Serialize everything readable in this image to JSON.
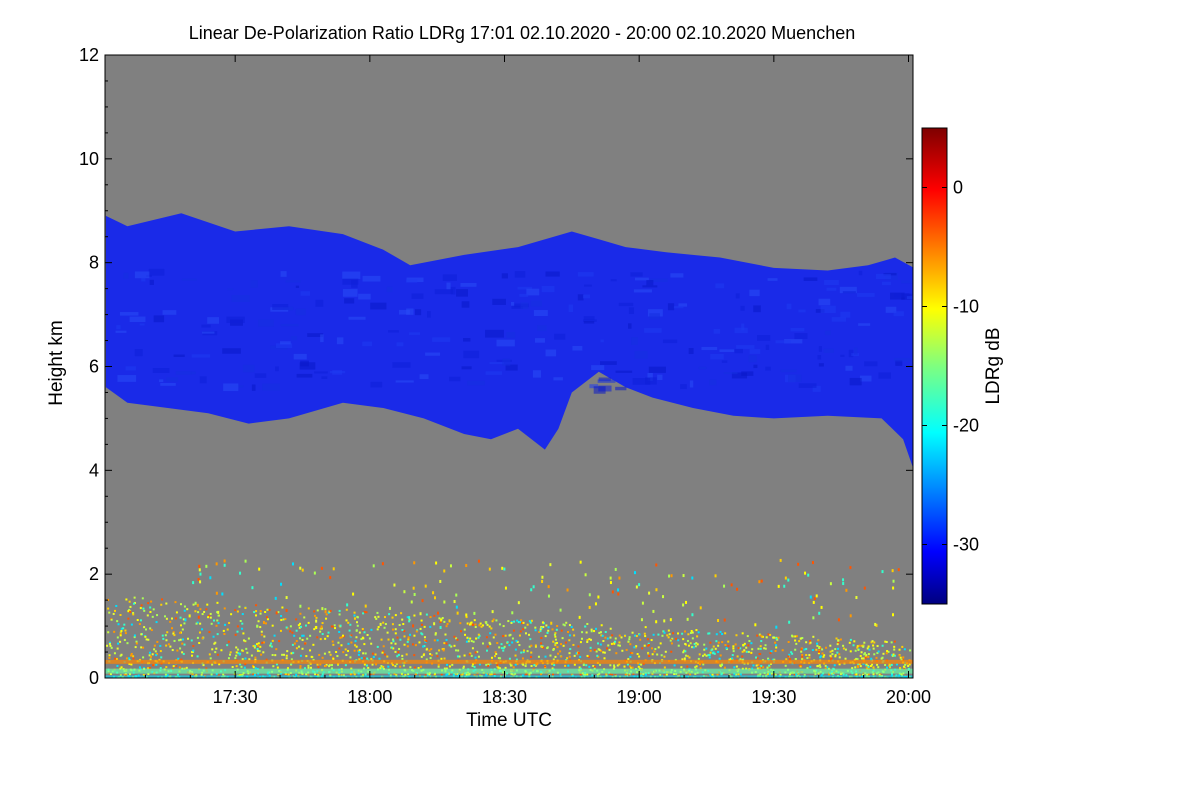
{
  "chart_data": {
    "type": "heatmap",
    "title": "Linear De-Polarization Ratio LDRg   17:01 02.10.2020 - 20:00 02.10.2020 Muenchen",
    "xlabel": "Time UTC",
    "ylabel": "Height km",
    "colorbar_label": "LDRg dB",
    "x_range": [
      "17:01",
      "20:01"
    ],
    "x_ticks": [
      "17:30",
      "18:00",
      "18:30",
      "19:00",
      "19:30",
      "20:00"
    ],
    "y_range": [
      0,
      12
    ],
    "y_ticks": [
      "0",
      "2",
      "4",
      "6",
      "8",
      "10",
      "12"
    ],
    "color_range": [
      -35,
      5
    ],
    "colorbar_ticks": [
      "0",
      "-10",
      "-20",
      "-30"
    ],
    "no_data_color": "#808080",
    "features": [
      {
        "name": "ice cloud layer",
        "height_km": [
          4.5,
          9.0
        ],
        "ldr_db": -32
      },
      {
        "name": "boundary layer aerosol / insects",
        "height_km": [
          0.0,
          1.6
        ],
        "ldr_db_range": [
          -20,
          0
        ]
      }
    ]
  },
  "colors": {
    "background": "#ffffff",
    "no_data": "#808080",
    "cloud": "#1a2ae8"
  }
}
